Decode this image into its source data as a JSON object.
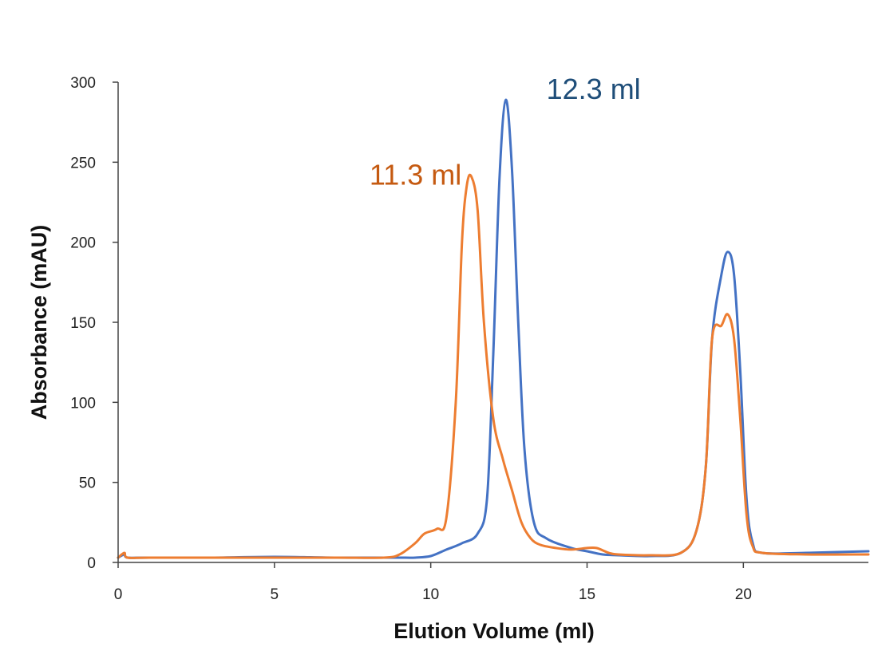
{
  "chart_data": {
    "type": "line",
    "title": "",
    "xlabel": "Elution Volume (ml)",
    "ylabel": "Absorbance (mAU)",
    "xlim": [
      0,
      24
    ],
    "ylim": [
      0,
      300
    ],
    "xticks": [
      0,
      5,
      10,
      15,
      20
    ],
    "yticks": [
      0,
      50,
      100,
      150,
      200,
      250,
      300
    ],
    "grid": false,
    "legend": "none",
    "series": [
      {
        "color": "#4472C4",
        "points": [
          [
            0,
            3
          ],
          [
            0.2,
            5
          ],
          [
            0.3,
            3
          ],
          [
            1,
            3
          ],
          [
            3,
            3
          ],
          [
            5,
            3.5
          ],
          [
            7,
            3
          ],
          [
            9,
            3
          ],
          [
            9.5,
            3
          ],
          [
            10,
            4
          ],
          [
            10.5,
            8
          ],
          [
            11,
            12
          ],
          [
            11.5,
            18
          ],
          [
            11.8,
            40
          ],
          [
            12,
            130
          ],
          [
            12.2,
            240
          ],
          [
            12.4,
            289
          ],
          [
            12.6,
            245
          ],
          [
            12.8,
            150
          ],
          [
            13,
            70
          ],
          [
            13.3,
            25
          ],
          [
            13.7,
            15
          ],
          [
            14.5,
            9
          ],
          [
            15,
            7
          ],
          [
            15.5,
            5
          ],
          [
            16,
            4.5
          ],
          [
            17,
            4
          ],
          [
            18,
            6
          ],
          [
            18.5,
            20
          ],
          [
            18.8,
            60
          ],
          [
            19,
            140
          ],
          [
            19.3,
            180
          ],
          [
            19.5,
            194
          ],
          [
            19.7,
            180
          ],
          [
            19.9,
            120
          ],
          [
            20.1,
            40
          ],
          [
            20.3,
            12
          ],
          [
            20.6,
            6
          ],
          [
            22,
            6
          ],
          [
            24,
            7
          ]
        ]
      },
      {
        "color": "#ED7D31",
        "points": [
          [
            0,
            3
          ],
          [
            0.2,
            6
          ],
          [
            0.3,
            3
          ],
          [
            1,
            3
          ],
          [
            3,
            3
          ],
          [
            5,
            3
          ],
          [
            7,
            3
          ],
          [
            8.5,
            3
          ],
          [
            9,
            5
          ],
          [
            9.5,
            12
          ],
          [
            9.8,
            18
          ],
          [
            10.2,
            21
          ],
          [
            10.5,
            28
          ],
          [
            10.8,
            100
          ],
          [
            11,
            200
          ],
          [
            11.15,
            235
          ],
          [
            11.3,
            241
          ],
          [
            11.5,
            220
          ],
          [
            11.7,
            150
          ],
          [
            12,
            90
          ],
          [
            12.3,
            65
          ],
          [
            12.6,
            45
          ],
          [
            12.9,
            25
          ],
          [
            13.2,
            15
          ],
          [
            13.5,
            11
          ],
          [
            14,
            9
          ],
          [
            14.5,
            8
          ],
          [
            15,
            9
          ],
          [
            15.3,
            9
          ],
          [
            15.7,
            6
          ],
          [
            16,
            5
          ],
          [
            17,
            4.5
          ],
          [
            18,
            6
          ],
          [
            18.5,
            20
          ],
          [
            18.8,
            60
          ],
          [
            19,
            140
          ],
          [
            19.3,
            148
          ],
          [
            19.5,
            155
          ],
          [
            19.7,
            140
          ],
          [
            19.9,
            90
          ],
          [
            20.1,
            30
          ],
          [
            20.3,
            10
          ],
          [
            20.6,
            6
          ],
          [
            22,
            5
          ],
          [
            24,
            5
          ]
        ]
      }
    ],
    "annotations": [
      {
        "text": "11.3 ml",
        "color": "#C55A11",
        "x": 11.3,
        "y": 241
      },
      {
        "text": "12.3 ml",
        "color": "#1F4E79",
        "x": 12.4,
        "y": 289
      }
    ]
  }
}
